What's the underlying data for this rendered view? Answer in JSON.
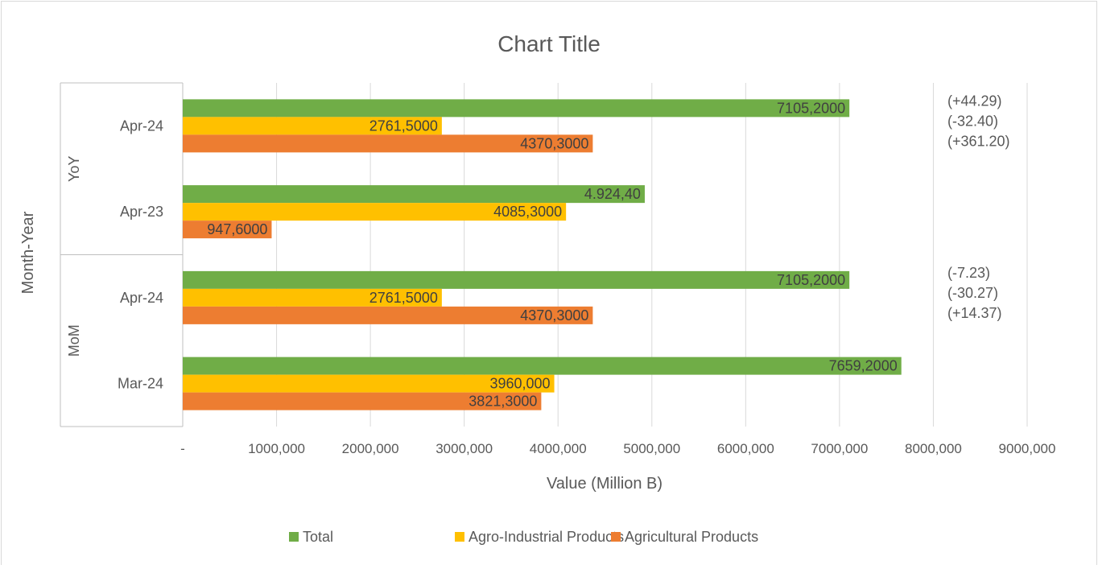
{
  "chart_data": {
    "type": "bar",
    "orientation": "horizontal",
    "title": "Chart Title",
    "xlabel": "Value (Million B)",
    "ylabel": "Month-Year",
    "xlim": [
      0,
      9000000
    ],
    "x_tick_labels": [
      "-",
      "1000,000",
      "2000,000",
      "3000,000",
      "4000,000",
      "5000,000",
      "6000,000",
      "7000,000",
      "8000,000",
      "9000,000"
    ],
    "grid": "vertical",
    "legend_position": "bottom",
    "groups": [
      {
        "label": "YoY",
        "categories": [
          "Apr-24",
          "Apr-23"
        ]
      },
      {
        "label": "MoM",
        "categories": [
          "Apr-24",
          "Mar-24"
        ]
      }
    ],
    "series": [
      {
        "name": "Total",
        "color": "#70ad47",
        "values": [
          7105200,
          4924400,
          7105200,
          7659200
        ],
        "labels": [
          "7105,2000",
          "4.924,40",
          "7105,2000",
          "7659,2000"
        ]
      },
      {
        "name": "Agro-Industrial Products",
        "color": "#ffc000",
        "values": [
          2761500,
          4085300,
          2761500,
          3960000
        ],
        "labels": [
          "2761,5000",
          "4085,3000",
          "2761,5000",
          "3960,000"
        ]
      },
      {
        "name": "Agricultural Products",
        "color": "#ed7d31",
        "values": [
          4370300,
          947600,
          4370300,
          3821300
        ],
        "labels": [
          "4370,3000",
          "947,6000",
          "4370,3000",
          "3821,3000"
        ]
      }
    ],
    "annotations": [
      {
        "group": "YoY",
        "lines": [
          "(+44.29)",
          "(-32.40)",
          "(+361.20)"
        ]
      },
      {
        "group": "MoM",
        "lines": [
          "(-7.23)",
          "(-30.27)",
          "(+14.37)"
        ]
      }
    ]
  }
}
